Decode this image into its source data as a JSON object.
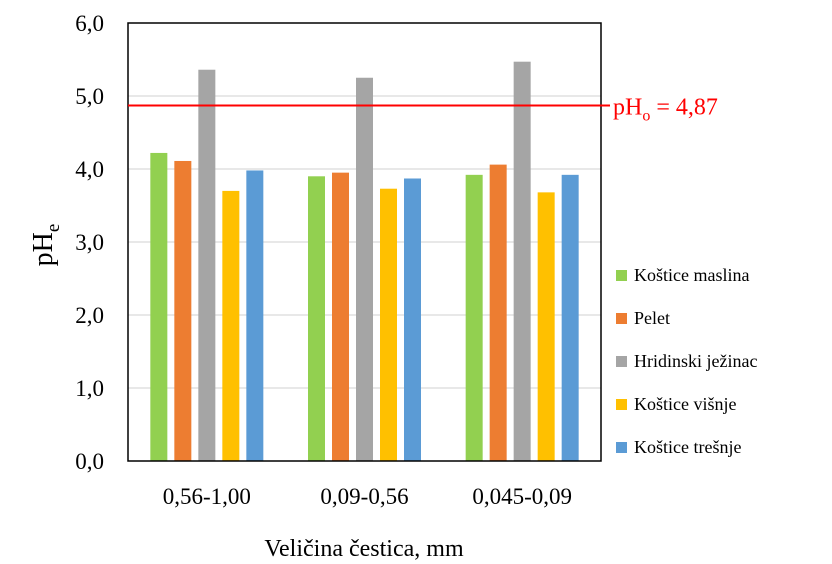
{
  "chart_data": {
    "type": "bar",
    "categories": [
      "0,56-1,00",
      "0,09-0,56",
      "0,045-0,09"
    ],
    "series": [
      {
        "name": "Koštice maslina",
        "color": "#92D050",
        "values": [
          4.22,
          3.9,
          3.92
        ]
      },
      {
        "name": "Pelet",
        "color": "#ED7D31",
        "values": [
          4.11,
          3.95,
          4.06
        ]
      },
      {
        "name": "Hridinski ježinac",
        "color": "#A5A5A5",
        "values": [
          5.36,
          5.25,
          5.47
        ]
      },
      {
        "name": "Koštice višnje",
        "color": "#FFC000",
        "values": [
          3.7,
          3.73,
          3.68
        ]
      },
      {
        "name": "Koštice trešnje",
        "color": "#5B9BD5",
        "values": [
          3.98,
          3.87,
          3.92
        ]
      }
    ],
    "ylim": [
      0,
      6
    ],
    "yticks": [
      "0,0",
      "1,0",
      "2,0",
      "3,0",
      "4,0",
      "5,0",
      "6,0"
    ],
    "ylabel": {
      "main": "pH",
      "sub": "e"
    },
    "xlabel": "Veličina čestica, mm",
    "reference_line": {
      "value": 4.87,
      "color": "#FF0000",
      "label_main": "pH",
      "label_sub": "o",
      "label_rest": " = 4,87"
    },
    "grid": true,
    "legend_position": "right"
  }
}
